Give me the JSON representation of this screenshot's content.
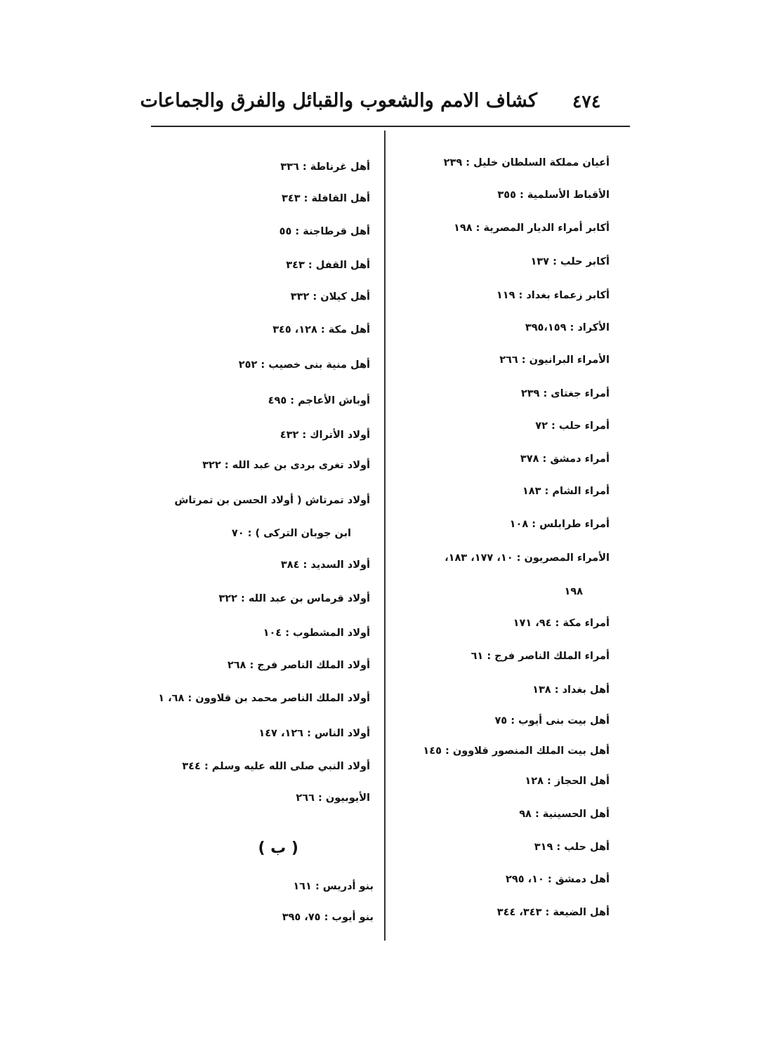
{
  "header": {
    "page_number": "٤٧٤",
    "title": "كشاف الامم والشعوب والقبائل والفرق والجماعات"
  },
  "right_column": [
    "أعيان مملكة السلطان خليل : ٢٣٩",
    "الأقباط الأسلمية : ٣٥٥",
    "أكابر أمراء الديار المصرية : ١٩٨",
    "أكابر حلب : ١٣٧",
    "أكابر زعماء بغداد : ١١٩",
    "الأكراد : ٣٩٥،١٥٩",
    "الأمراء البرانيون : ٢٦٦",
    "أمراء جغتاى : ٢٣٩",
    "أمراء حلب : ٧٢",
    "أمراء دمشق : ٣٧٨",
    "أمراء الشام : ١٨٣",
    "أمراء طرابلس : ١٠٨",
    "الأمراء المصريون : ١٠، ١٧٧، ١٨٣،",
    "١٩٨",
    "أمراء مكة : ٩٤، ١٧١",
    "أمراء الملك الناصر فرج : ٦١",
    "أهل بغداد : ١٣٨",
    "أهل بيت بنى أيوب : ٧٥",
    "أهل بيت الملك المنصور قلاوون : ١٤٥",
    "أهل الحجاز : ١٢٨",
    "أهل الحسينية : ٩٨",
    "أهل حلب : ٣١٩",
    "أهل دمشق : ١٠، ٢٩٥",
    "أهل الضيعة : ٣٤٣، ٣٤٤"
  ],
  "left_column": [
    "أهل غرناطة : ٣٣٦",
    "أهل القافلة : ٣٤٣",
    "أهل قرطاجنة : ٥٥",
    "أهل القفل : ٣٤٣",
    "أهل كيلان : ٣٣٢",
    "أهل مكة : ١٢٨، ٣٤٥",
    "أهل منية بنى خصيب : ٢٥٢",
    "أوباش الأعاجم : ٤٩٥",
    "أولاد الأتراك : ٤٣٢",
    "أولاد تغرى بردى بن عبد الله : ٣٢٢",
    "أولاد تمرتاش ( أولاد الحسن بن تمرتاش",
    "ابن جوبان التركى ) : ٧٠",
    "أولاد السديد : ٣٨٤",
    "أولاد قرماس بن عبد الله : ٣٢٢",
    "أولاد المشطوب : ١٠٤",
    "أولاد الملك الناصر فرج : ٢٦٨",
    "أولاد الملك الناصر محمد بن قلاوون : ٦٨، ١",
    "أولاد الناس : ١٢٦، ١٤٧",
    "أولاد النبي صلى الله عليه وسلم : ٣٤٤",
    "الأيوبيون : ٢٦٦"
  ],
  "section_letter": "( ب )",
  "section_b": [
    "بنو أدريس : ١٦١",
    "بنو أيوب : ٧٥، ٣٩٥"
  ]
}
